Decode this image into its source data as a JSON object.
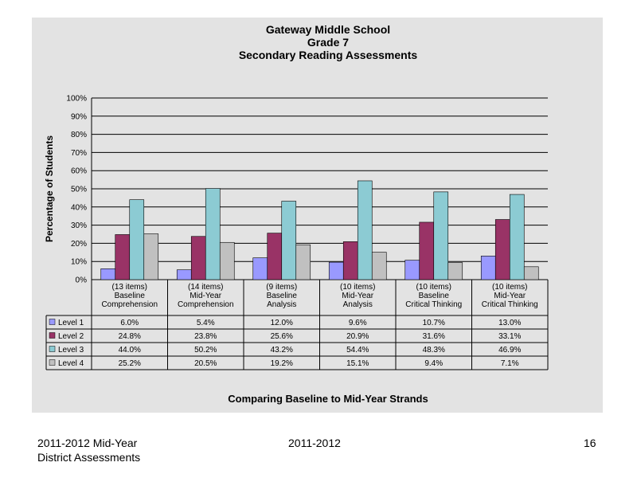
{
  "chart_data": {
    "type": "bar",
    "title": [
      "Gateway Middle School",
      "Grade 7",
      "Secondary Reading Assessments"
    ],
    "ylabel": "Percentage of Students",
    "xlabel": "Comparing Baseline to Mid-Year Strands",
    "ylim": [
      0,
      100
    ],
    "yticks": [
      "0%",
      "10%",
      "20%",
      "30%",
      "40%",
      "50%",
      "60%",
      "70%",
      "80%",
      "90%",
      "100%"
    ],
    "categories": [
      [
        "(13 items)",
        "Baseline",
        "Comprehension"
      ],
      [
        "(14 items)",
        "Mid-Year",
        "Comprehension"
      ],
      [
        "(9 items)",
        "Baseline",
        "Analysis"
      ],
      [
        "(10 items)",
        "Mid-Year",
        "Analysis"
      ],
      [
        "(10 items)",
        "Baseline",
        "Critical Thinking"
      ],
      [
        "(10 items)",
        "Mid-Year",
        "Critical Thinking"
      ]
    ],
    "series": [
      {
        "name": "Level 1",
        "color": "#9999ff",
        "values": [
          6.0,
          5.4,
          12.0,
          9.6,
          10.7,
          13.0
        ],
        "labels": [
          "6.0%",
          "5.4%",
          "12.0%",
          "9.6%",
          "10.7%",
          "13.0%"
        ]
      },
      {
        "name": "Level 2",
        "color": "#993366",
        "values": [
          24.8,
          23.8,
          25.6,
          20.9,
          31.6,
          33.1
        ],
        "labels": [
          "24.8%",
          "23.8%",
          "25.6%",
          "20.9%",
          "31.6%",
          "33.1%"
        ]
      },
      {
        "name": "Level 3",
        "color": "#8ccbd3",
        "values": [
          44.0,
          50.2,
          43.2,
          54.4,
          48.3,
          46.9
        ],
        "labels": [
          "44.0%",
          "50.2%",
          "43.2%",
          "54.4%",
          "48.3%",
          "46.9%"
        ]
      },
      {
        "name": "Level 4",
        "color": "#c0c0c0",
        "values": [
          25.2,
          20.5,
          19.2,
          15.1,
          9.4,
          7.1
        ],
        "labels": [
          "25.2%",
          "20.5%",
          "19.2%",
          "15.1%",
          "9.4%",
          "7.1%"
        ]
      }
    ],
    "grid": true,
    "legend": "data-table"
  },
  "footer": {
    "left_line1": "2011-2012  Mid-Year",
    "left_line2": "District Assessments",
    "center": "2011-2012",
    "page_number": "16"
  }
}
